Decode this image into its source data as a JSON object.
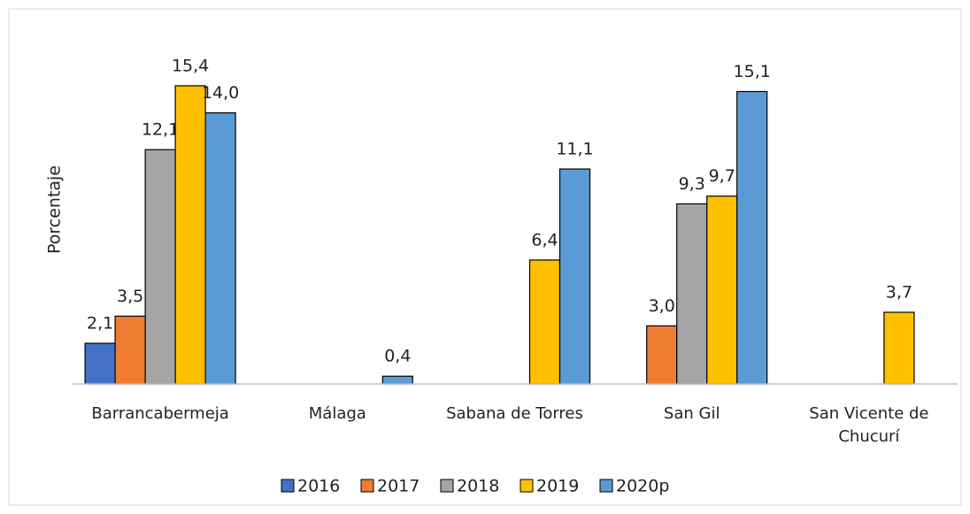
{
  "chart_data": {
    "type": "bar",
    "ylabel": "Porcentaje",
    "categories": [
      "Barrancabermeja",
      "Málaga",
      "Sabana de Torres",
      "San Gil",
      "San Vicente de Chucurí"
    ],
    "series": [
      {
        "name": "2016",
        "color": "#4472c4",
        "values": [
          2.1,
          null,
          null,
          null,
          null
        ],
        "value_labels": [
          "2,1",
          null,
          null,
          null,
          null
        ]
      },
      {
        "name": "2017",
        "color": "#ed7d31",
        "values": [
          3.5,
          null,
          null,
          3.0,
          null
        ],
        "value_labels": [
          "3,5",
          null,
          null,
          "3,0",
          null
        ]
      },
      {
        "name": "2018",
        "color": "#a5a5a5",
        "values": [
          12.1,
          null,
          null,
          9.3,
          null
        ],
        "value_labels": [
          "12,1",
          null,
          null,
          "9,3",
          null
        ]
      },
      {
        "name": "2019",
        "color": "#ffc000",
        "values": [
          15.4,
          null,
          6.4,
          9.7,
          3.7
        ],
        "value_labels": [
          "15,4",
          null,
          "6,4",
          "9,7",
          "3,7"
        ]
      },
      {
        "name": "2020p",
        "color": "#5b9bd5",
        "values": [
          14.0,
          0.4,
          11.1,
          15.1,
          null
        ],
        "value_labels": [
          "14,0",
          "0,4",
          "11,1",
          "15,1",
          null
        ]
      }
    ],
    "ylim": [
      0,
      18
    ],
    "legend": "bottom"
  }
}
